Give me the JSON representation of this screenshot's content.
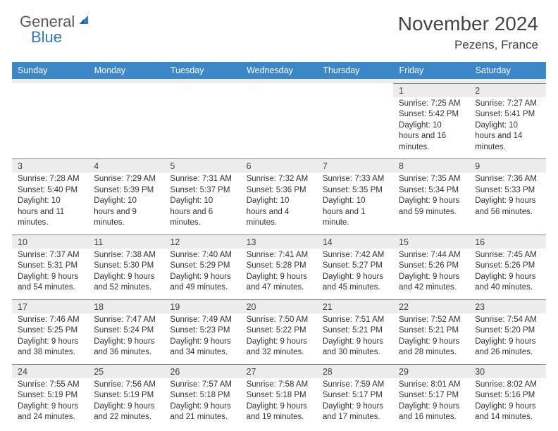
{
  "logo": {
    "gray": "General",
    "blue": "Blue"
  },
  "title": "November 2024",
  "location": "Pezens, France",
  "dayNames": [
    "Sunday",
    "Monday",
    "Tuesday",
    "Wednesday",
    "Thursday",
    "Friday",
    "Saturday"
  ],
  "colors": {
    "header_bg": "#3b87c8",
    "header_text": "#ffffff",
    "numrow_bg": "#ececec",
    "body_text": "#333333",
    "logo_gray": "#5a5a5a",
    "logo_blue": "#2f78c0",
    "rule": "#888888"
  },
  "weeks": [
    [
      null,
      null,
      null,
      null,
      null,
      {
        "n": "1",
        "sunrise": "Sunrise: 7:25 AM",
        "sunset": "Sunset: 5:42 PM",
        "daylight": "Daylight: 10 hours and 16 minutes."
      },
      {
        "n": "2",
        "sunrise": "Sunrise: 7:27 AM",
        "sunset": "Sunset: 5:41 PM",
        "daylight": "Daylight: 10 hours and 14 minutes."
      }
    ],
    [
      {
        "n": "3",
        "sunrise": "Sunrise: 7:28 AM",
        "sunset": "Sunset: 5:40 PM",
        "daylight": "Daylight: 10 hours and 11 minutes."
      },
      {
        "n": "4",
        "sunrise": "Sunrise: 7:29 AM",
        "sunset": "Sunset: 5:39 PM",
        "daylight": "Daylight: 10 hours and 9 minutes."
      },
      {
        "n": "5",
        "sunrise": "Sunrise: 7:31 AM",
        "sunset": "Sunset: 5:37 PM",
        "daylight": "Daylight: 10 hours and 6 minutes."
      },
      {
        "n": "6",
        "sunrise": "Sunrise: 7:32 AM",
        "sunset": "Sunset: 5:36 PM",
        "daylight": "Daylight: 10 hours and 4 minutes."
      },
      {
        "n": "7",
        "sunrise": "Sunrise: 7:33 AM",
        "sunset": "Sunset: 5:35 PM",
        "daylight": "Daylight: 10 hours and 1 minute."
      },
      {
        "n": "8",
        "sunrise": "Sunrise: 7:35 AM",
        "sunset": "Sunset: 5:34 PM",
        "daylight": "Daylight: 9 hours and 59 minutes."
      },
      {
        "n": "9",
        "sunrise": "Sunrise: 7:36 AM",
        "sunset": "Sunset: 5:33 PM",
        "daylight": "Daylight: 9 hours and 56 minutes."
      }
    ],
    [
      {
        "n": "10",
        "sunrise": "Sunrise: 7:37 AM",
        "sunset": "Sunset: 5:31 PM",
        "daylight": "Daylight: 9 hours and 54 minutes."
      },
      {
        "n": "11",
        "sunrise": "Sunrise: 7:38 AM",
        "sunset": "Sunset: 5:30 PM",
        "daylight": "Daylight: 9 hours and 52 minutes."
      },
      {
        "n": "12",
        "sunrise": "Sunrise: 7:40 AM",
        "sunset": "Sunset: 5:29 PM",
        "daylight": "Daylight: 9 hours and 49 minutes."
      },
      {
        "n": "13",
        "sunrise": "Sunrise: 7:41 AM",
        "sunset": "Sunset: 5:28 PM",
        "daylight": "Daylight: 9 hours and 47 minutes."
      },
      {
        "n": "14",
        "sunrise": "Sunrise: 7:42 AM",
        "sunset": "Sunset: 5:27 PM",
        "daylight": "Daylight: 9 hours and 45 minutes."
      },
      {
        "n": "15",
        "sunrise": "Sunrise: 7:44 AM",
        "sunset": "Sunset: 5:26 PM",
        "daylight": "Daylight: 9 hours and 42 minutes."
      },
      {
        "n": "16",
        "sunrise": "Sunrise: 7:45 AM",
        "sunset": "Sunset: 5:26 PM",
        "daylight": "Daylight: 9 hours and 40 minutes."
      }
    ],
    [
      {
        "n": "17",
        "sunrise": "Sunrise: 7:46 AM",
        "sunset": "Sunset: 5:25 PM",
        "daylight": "Daylight: 9 hours and 38 minutes."
      },
      {
        "n": "18",
        "sunrise": "Sunrise: 7:47 AM",
        "sunset": "Sunset: 5:24 PM",
        "daylight": "Daylight: 9 hours and 36 minutes."
      },
      {
        "n": "19",
        "sunrise": "Sunrise: 7:49 AM",
        "sunset": "Sunset: 5:23 PM",
        "daylight": "Daylight: 9 hours and 34 minutes."
      },
      {
        "n": "20",
        "sunrise": "Sunrise: 7:50 AM",
        "sunset": "Sunset: 5:22 PM",
        "daylight": "Daylight: 9 hours and 32 minutes."
      },
      {
        "n": "21",
        "sunrise": "Sunrise: 7:51 AM",
        "sunset": "Sunset: 5:21 PM",
        "daylight": "Daylight: 9 hours and 30 minutes."
      },
      {
        "n": "22",
        "sunrise": "Sunrise: 7:52 AM",
        "sunset": "Sunset: 5:21 PM",
        "daylight": "Daylight: 9 hours and 28 minutes."
      },
      {
        "n": "23",
        "sunrise": "Sunrise: 7:54 AM",
        "sunset": "Sunset: 5:20 PM",
        "daylight": "Daylight: 9 hours and 26 minutes."
      }
    ],
    [
      {
        "n": "24",
        "sunrise": "Sunrise: 7:55 AM",
        "sunset": "Sunset: 5:19 PM",
        "daylight": "Daylight: 9 hours and 24 minutes."
      },
      {
        "n": "25",
        "sunrise": "Sunrise: 7:56 AM",
        "sunset": "Sunset: 5:19 PM",
        "daylight": "Daylight: 9 hours and 22 minutes."
      },
      {
        "n": "26",
        "sunrise": "Sunrise: 7:57 AM",
        "sunset": "Sunset: 5:18 PM",
        "daylight": "Daylight: 9 hours and 21 minutes."
      },
      {
        "n": "27",
        "sunrise": "Sunrise: 7:58 AM",
        "sunset": "Sunset: 5:18 PM",
        "daylight": "Daylight: 9 hours and 19 minutes."
      },
      {
        "n": "28",
        "sunrise": "Sunrise: 7:59 AM",
        "sunset": "Sunset: 5:17 PM",
        "daylight": "Daylight: 9 hours and 17 minutes."
      },
      {
        "n": "29",
        "sunrise": "Sunrise: 8:01 AM",
        "sunset": "Sunset: 5:17 PM",
        "daylight": "Daylight: 9 hours and 16 minutes."
      },
      {
        "n": "30",
        "sunrise": "Sunrise: 8:02 AM",
        "sunset": "Sunset: 5:16 PM",
        "daylight": "Daylight: 9 hours and 14 minutes."
      }
    ]
  ]
}
